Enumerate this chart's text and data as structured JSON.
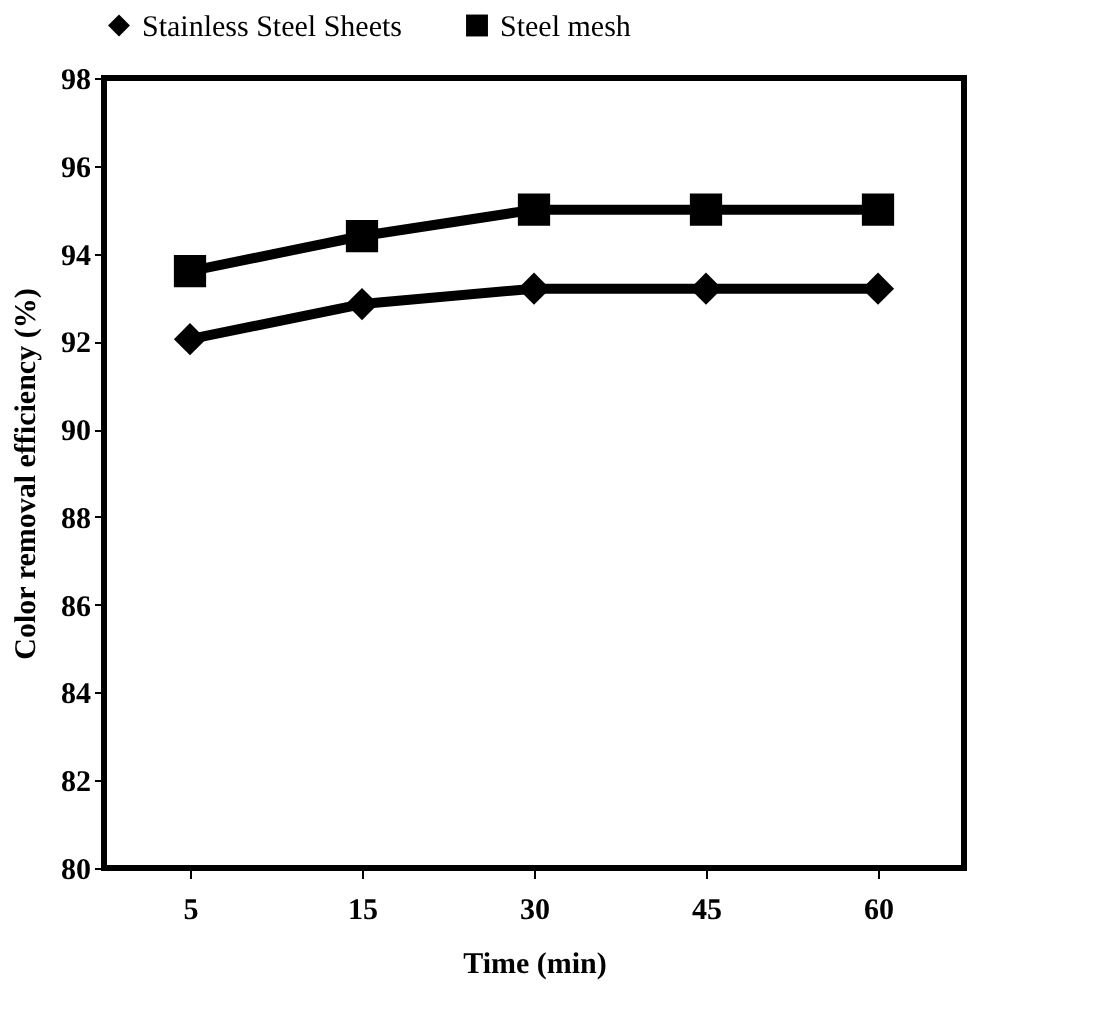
{
  "chart_data": {
    "type": "line",
    "xlabel": "Time (min)",
    "ylabel": "Color removal efficiency (%)",
    "categories": [
      "5",
      "15",
      "30",
      "45",
      "60"
    ],
    "series": [
      {
        "name": "Stainless Steel Sheets",
        "color": "#000000",
        "marker": "diamond",
        "values": [
          92.05,
          92.85,
          93.2,
          93.2,
          93.2
        ]
      },
      {
        "name": "Steel mesh",
        "color": "#000000",
        "marker": "square",
        "values": [
          93.6,
          94.4,
          95.0,
          95.0,
          95.0
        ]
      }
    ],
    "ylim": [
      80,
      98
    ],
    "yticks": [
      80,
      82,
      84,
      86,
      88,
      90,
      92,
      94,
      96,
      98
    ],
    "grid": false,
    "legend": "top",
    "line_style": "solid"
  }
}
